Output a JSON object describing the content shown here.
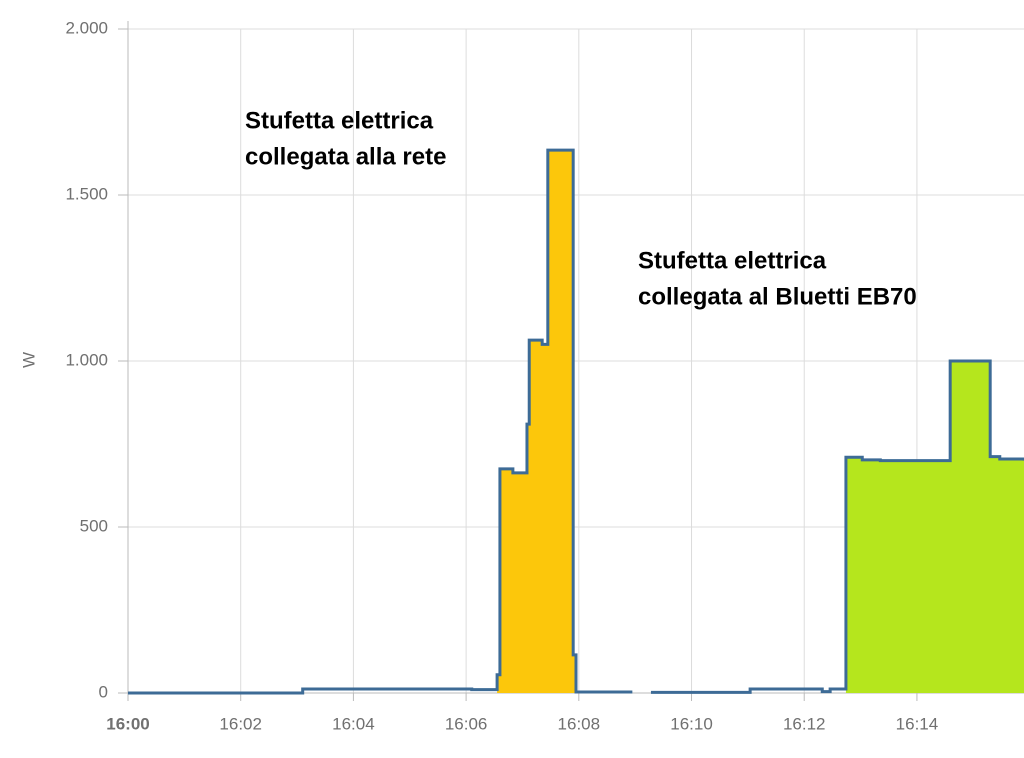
{
  "chart_data": {
    "type": "step-area",
    "y_label": "W",
    "xlim": [
      0,
      15.9
    ],
    "xticks": [
      {
        "value": 0,
        "label": "16:00"
      },
      {
        "value": 2,
        "label": "16:02"
      },
      {
        "value": 4,
        "label": "16:04"
      },
      {
        "value": 6,
        "label": "16:06"
      },
      {
        "value": 8,
        "label": "16:08"
      },
      {
        "value": 10,
        "label": "16:10"
      },
      {
        "value": 12,
        "label": "16:12"
      },
      {
        "value": 14,
        "label": "16:14"
      }
    ],
    "ylim": [
      0,
      2000
    ],
    "yticks": [
      0,
      500,
      {
        "value": 1000,
        "label": "1.000"
      },
      {
        "value": 1500,
        "label": "1.500"
      },
      {
        "value": 2000,
        "label": "2.000"
      }
    ],
    "grid": true,
    "series": [
      {
        "kind": "line",
        "color": "#3d6b96",
        "x": [
          0,
          3.1,
          6.1,
          6.55,
          6.6,
          6.83,
          7.08,
          7.12,
          7.35,
          7.45,
          7.9,
          7.95,
          8.95,
          9.28,
          11.04,
          12.32,
          12.46,
          12.74,
          13.03,
          13.35,
          14.59,
          15.3,
          15.47,
          15.9
        ],
        "values": [
          0,
          12,
          10,
          55,
          675,
          663,
          810,
          1063,
          1050,
          1635,
          115,
          3,
          null,
          2,
          12,
          4,
          12,
          710,
          702,
          700,
          1000,
          712,
          705,
          700
        ]
      },
      {
        "kind": "area",
        "color": "#fcc70b",
        "x": [
          6.55,
          6.6,
          6.83,
          7.08,
          7.12,
          7.35,
          7.45,
          7.9,
          7.95
        ],
        "values": [
          55,
          675,
          663,
          810,
          1063,
          1050,
          1635,
          115,
          3
        ]
      },
      {
        "kind": "area",
        "color": "#b5e61d",
        "x": [
          12.74,
          13.03,
          13.35,
          14.59,
          15.3,
          15.47,
          15.9
        ],
        "values": [
          710,
          702,
          700,
          1000,
          712,
          705,
          700
        ]
      }
    ],
    "annotations": [
      {
        "lines": [
          "Stufetta elettrica",
          "collegata alla rete"
        ]
      },
      {
        "lines": [
          "Stufetta elettrica",
          "collegata al Bluetti EB70"
        ]
      }
    ]
  }
}
